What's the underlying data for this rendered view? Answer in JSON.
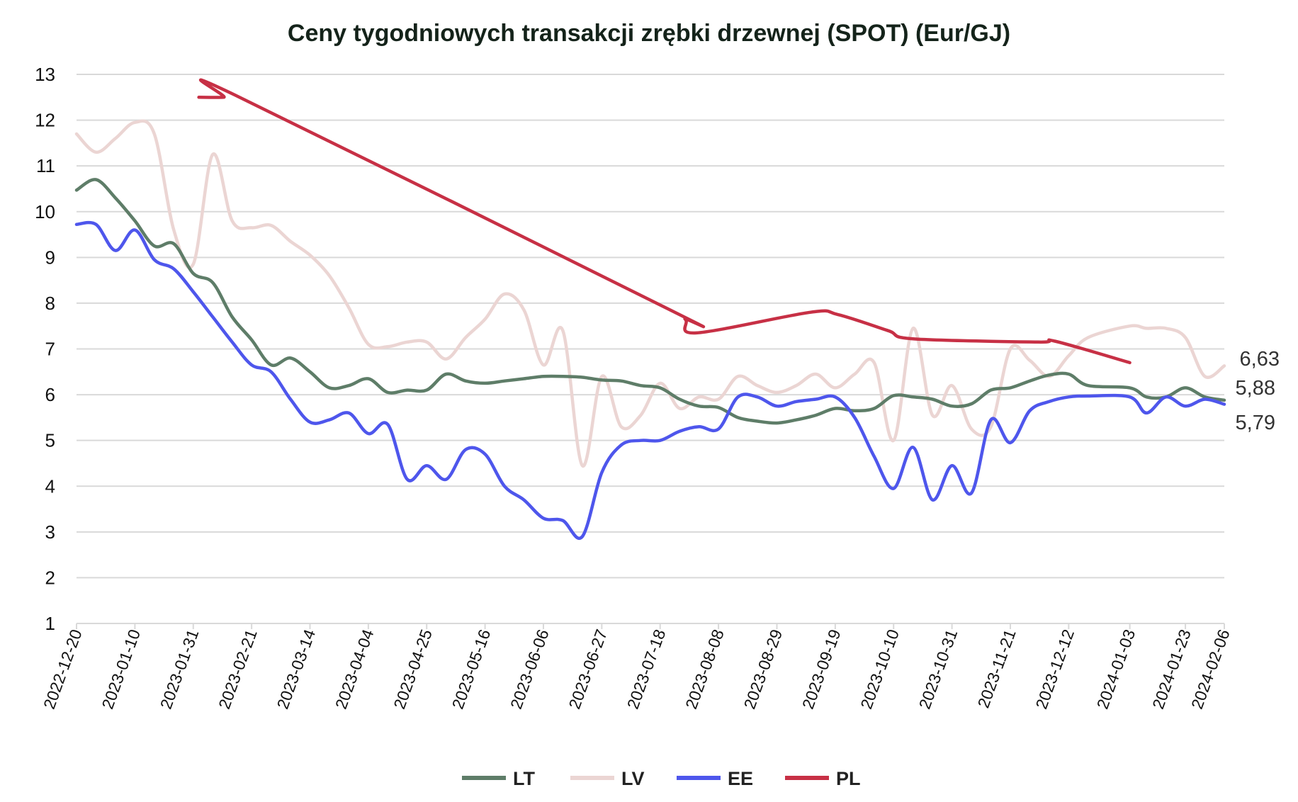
{
  "chart_data": {
    "type": "line",
    "title": "Ceny tygodniowych transakcji zrębki drzewnej (SPOT) (Eur/GJ)",
    "xlabel": "",
    "ylabel": "",
    "ylim": [
      1,
      13
    ],
    "yticks": [
      1,
      2,
      3,
      4,
      5,
      6,
      7,
      8,
      9,
      10,
      11,
      12,
      13
    ],
    "grid": true,
    "legend_position": "bottom",
    "x_start": "2022-12-20",
    "x_end": "2024-02-06",
    "x_ticks": [
      "2022-12-20",
      "2023-01-10",
      "2023-01-31",
      "2023-02-21",
      "2023-03-14",
      "2023-04-04",
      "2023-04-25",
      "2023-05-16",
      "2023-06-06",
      "2023-06-27",
      "2023-07-18",
      "2023-08-08",
      "2023-08-29",
      "2023-09-19",
      "2023-10-10",
      "2023-10-31",
      "2023-11-21",
      "2023-12-12",
      "2024-01-03",
      "2024-01-23",
      "2024-02-06"
    ],
    "end_labels": [
      "6,63",
      "5,88",
      "5,79"
    ],
    "series": [
      {
        "name": "LT",
        "color": "#5e7d68",
        "points": [
          [
            "2022-12-20",
            10.47
          ],
          [
            "2022-12-27",
            10.7
          ],
          [
            "2023-01-03",
            10.3
          ],
          [
            "2023-01-10",
            9.8
          ],
          [
            "2023-01-17",
            9.25
          ],
          [
            "2023-01-24",
            9.3
          ],
          [
            "2023-01-31",
            8.65
          ],
          [
            "2023-02-07",
            8.45
          ],
          [
            "2023-02-14",
            7.7
          ],
          [
            "2023-02-21",
            7.2
          ],
          [
            "2023-02-28",
            6.65
          ],
          [
            "2023-03-07",
            6.8
          ],
          [
            "2023-03-14",
            6.5
          ],
          [
            "2023-03-21",
            6.15
          ],
          [
            "2023-03-28",
            6.2
          ],
          [
            "2023-04-04",
            6.35
          ],
          [
            "2023-04-11",
            6.05
          ],
          [
            "2023-04-18",
            6.1
          ],
          [
            "2023-04-25",
            6.1
          ],
          [
            "2023-05-02",
            6.45
          ],
          [
            "2023-05-09",
            6.3
          ],
          [
            "2023-05-16",
            6.25
          ],
          [
            "2023-05-23",
            6.3
          ],
          [
            "2023-05-30",
            6.35
          ],
          [
            "2023-06-06",
            6.4
          ],
          [
            "2023-06-13",
            6.4
          ],
          [
            "2023-06-20",
            6.38
          ],
          [
            "2023-06-27",
            6.32
          ],
          [
            "2023-07-04",
            6.3
          ],
          [
            "2023-07-11",
            6.2
          ],
          [
            "2023-07-18",
            6.15
          ],
          [
            "2023-07-25",
            5.9
          ],
          [
            "2023-08-01",
            5.75
          ],
          [
            "2023-08-08",
            5.72
          ],
          [
            "2023-08-15",
            5.5
          ],
          [
            "2023-08-22",
            5.42
          ],
          [
            "2023-08-29",
            5.38
          ],
          [
            "2023-09-05",
            5.45
          ],
          [
            "2023-09-12",
            5.55
          ],
          [
            "2023-09-19",
            5.7
          ],
          [
            "2023-09-26",
            5.65
          ],
          [
            "2023-10-03",
            5.7
          ],
          [
            "2023-10-10",
            5.98
          ],
          [
            "2023-10-17",
            5.95
          ],
          [
            "2023-10-24",
            5.9
          ],
          [
            "2023-10-31",
            5.75
          ],
          [
            "2023-11-07",
            5.8
          ],
          [
            "2023-11-14",
            6.1
          ],
          [
            "2023-11-21",
            6.15
          ],
          [
            "2023-11-28",
            6.3
          ],
          [
            "2023-12-05",
            6.43
          ],
          [
            "2023-12-12",
            6.45
          ],
          [
            "2023-12-19",
            6.2
          ],
          [
            "2024-01-03",
            6.15
          ],
          [
            "2024-01-09",
            5.95
          ],
          [
            "2024-01-16",
            5.95
          ],
          [
            "2024-01-23",
            6.15
          ],
          [
            "2024-01-30",
            5.95
          ],
          [
            "2024-02-06",
            5.88
          ]
        ]
      },
      {
        "name": "LV",
        "color": "#ebd5d3",
        "points": [
          [
            "2022-12-20",
            11.7
          ],
          [
            "2022-12-27",
            11.3
          ],
          [
            "2023-01-03",
            11.6
          ],
          [
            "2023-01-10",
            11.95
          ],
          [
            "2023-01-17",
            11.7
          ],
          [
            "2023-01-24",
            9.6
          ],
          [
            "2023-01-31",
            8.85
          ],
          [
            "2023-02-07",
            11.25
          ],
          [
            "2023-02-14",
            9.8
          ],
          [
            "2023-02-21",
            9.65
          ],
          [
            "2023-02-28",
            9.7
          ],
          [
            "2023-03-07",
            9.35
          ],
          [
            "2023-03-14",
            9.05
          ],
          [
            "2023-03-21",
            8.6
          ],
          [
            "2023-03-28",
            7.9
          ],
          [
            "2023-04-04",
            7.1
          ],
          [
            "2023-04-11",
            7.05
          ],
          [
            "2023-04-18",
            7.15
          ],
          [
            "2023-04-25",
            7.15
          ],
          [
            "2023-05-02",
            6.78
          ],
          [
            "2023-05-09",
            7.25
          ],
          [
            "2023-05-16",
            7.65
          ],
          [
            "2023-05-23",
            8.2
          ],
          [
            "2023-05-30",
            7.85
          ],
          [
            "2023-06-06",
            6.65
          ],
          [
            "2023-06-13",
            7.4
          ],
          [
            "2023-06-20",
            4.45
          ],
          [
            "2023-06-27",
            6.4
          ],
          [
            "2023-07-04",
            5.3
          ],
          [
            "2023-07-11",
            5.55
          ],
          [
            "2023-07-18",
            6.25
          ],
          [
            "2023-07-25",
            5.7
          ],
          [
            "2023-08-01",
            5.95
          ],
          [
            "2023-08-08",
            5.9
          ],
          [
            "2023-08-15",
            6.4
          ],
          [
            "2023-08-22",
            6.2
          ],
          [
            "2023-08-29",
            6.05
          ],
          [
            "2023-09-05",
            6.2
          ],
          [
            "2023-09-12",
            6.45
          ],
          [
            "2023-09-19",
            6.15
          ],
          [
            "2023-09-26",
            6.45
          ],
          [
            "2023-10-03",
            6.7
          ],
          [
            "2023-10-10",
            5.0
          ],
          [
            "2023-10-17",
            7.45
          ],
          [
            "2023-10-24",
            5.55
          ],
          [
            "2023-10-31",
            6.2
          ],
          [
            "2023-11-07",
            5.25
          ],
          [
            "2023-11-14",
            5.3
          ],
          [
            "2023-11-21",
            7.0
          ],
          [
            "2023-11-28",
            6.75
          ],
          [
            "2023-12-05",
            6.4
          ],
          [
            "2023-12-12",
            6.85
          ],
          [
            "2023-12-19",
            7.25
          ],
          [
            "2024-01-03",
            7.5
          ],
          [
            "2024-01-09",
            7.45
          ],
          [
            "2024-01-16",
            7.45
          ],
          [
            "2024-01-23",
            7.25
          ],
          [
            "2024-01-30",
            6.4
          ],
          [
            "2024-02-06",
            6.63
          ]
        ]
      },
      {
        "name": "EE",
        "color": "#4e56ec",
        "points": [
          [
            "2022-12-20",
            9.72
          ],
          [
            "2022-12-27",
            9.72
          ],
          [
            "2023-01-03",
            9.15
          ],
          [
            "2023-01-10",
            9.6
          ],
          [
            "2023-01-17",
            8.95
          ],
          [
            "2023-01-24",
            8.75
          ],
          [
            "2023-01-31",
            8.25
          ],
          [
            "2023-02-07",
            7.7
          ],
          [
            "2023-02-14",
            7.15
          ],
          [
            "2023-02-21",
            6.65
          ],
          [
            "2023-02-28",
            6.5
          ],
          [
            "2023-03-07",
            5.9
          ],
          [
            "2023-03-14",
            5.4
          ],
          [
            "2023-03-21",
            5.45
          ],
          [
            "2023-03-28",
            5.6
          ],
          [
            "2023-04-04",
            5.15
          ],
          [
            "2023-04-11",
            5.35
          ],
          [
            "2023-04-18",
            4.15
          ],
          [
            "2023-04-25",
            4.45
          ],
          [
            "2023-05-02",
            4.15
          ],
          [
            "2023-05-09",
            4.8
          ],
          [
            "2023-05-16",
            4.7
          ],
          [
            "2023-05-23",
            4.0
          ],
          [
            "2023-05-30",
            3.7
          ],
          [
            "2023-06-06",
            3.3
          ],
          [
            "2023-06-13",
            3.25
          ],
          [
            "2023-06-20",
            2.9
          ],
          [
            "2023-06-27",
            4.3
          ],
          [
            "2023-07-04",
            4.9
          ],
          [
            "2023-07-11",
            5.0
          ],
          [
            "2023-07-18",
            5.0
          ],
          [
            "2023-07-25",
            5.2
          ],
          [
            "2023-08-01",
            5.3
          ],
          [
            "2023-08-08",
            5.25
          ],
          [
            "2023-08-15",
            5.95
          ],
          [
            "2023-08-22",
            5.95
          ],
          [
            "2023-08-29",
            5.75
          ],
          [
            "2023-09-05",
            5.85
          ],
          [
            "2023-09-12",
            5.9
          ],
          [
            "2023-09-19",
            5.95
          ],
          [
            "2023-09-26",
            5.5
          ],
          [
            "2023-10-03",
            4.65
          ],
          [
            "2023-10-10",
            3.95
          ],
          [
            "2023-10-17",
            4.85
          ],
          [
            "2023-10-24",
            3.7
          ],
          [
            "2023-10-31",
            4.45
          ],
          [
            "2023-11-07",
            3.85
          ],
          [
            "2023-11-14",
            5.45
          ],
          [
            "2023-11-21",
            4.95
          ],
          [
            "2023-11-28",
            5.65
          ],
          [
            "2023-12-05",
            5.85
          ],
          [
            "2023-12-12",
            5.95
          ],
          [
            "2023-12-19",
            5.97
          ],
          [
            "2024-01-03",
            5.95
          ],
          [
            "2024-01-09",
            5.6
          ],
          [
            "2024-01-16",
            5.95
          ],
          [
            "2024-01-23",
            5.75
          ],
          [
            "2024-01-30",
            5.9
          ],
          [
            "2024-02-06",
            5.79
          ]
        ]
      },
      {
        "name": "PL",
        "color": "#c73045",
        "points": [
          [
            "2023-02-02",
            12.5
          ],
          [
            "2023-02-11",
            12.5
          ],
          [
            "2023-02-15",
            12.55
          ],
          [
            "2023-07-20",
            7.9
          ],
          [
            "2023-07-27",
            7.65
          ],
          [
            "2023-07-31",
            7.35
          ],
          [
            "2023-09-10",
            7.8
          ],
          [
            "2023-09-20",
            7.75
          ],
          [
            "2023-10-08",
            7.4
          ],
          [
            "2023-10-17",
            7.22
          ],
          [
            "2023-12-01",
            7.15
          ],
          [
            "2023-12-07",
            7.17
          ],
          [
            "2024-01-03",
            6.7
          ]
        ]
      }
    ]
  }
}
